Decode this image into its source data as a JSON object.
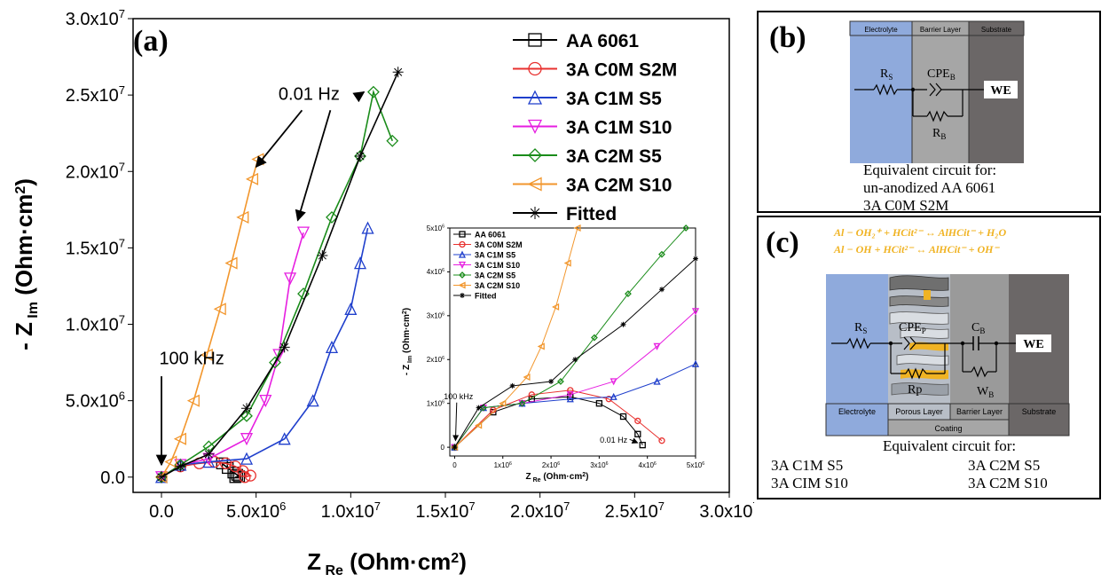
{
  "chart_data": [
    {
      "id": "a",
      "type": "line",
      "panel_label": "(a)",
      "xlabel_main": "Z",
      "xlabel_sub": "Re",
      "xlabel_unit": "(Ohm·cm",
      "xlabel_unit_sup": "2",
      "xlabel_unit_end": ")",
      "ylabel_main": "- Z",
      "ylabel_sub": "Im",
      "ylabel_unit": "(Ohm·cm",
      "ylabel_unit_sup": "2",
      "ylabel_unit_end": ")",
      "xlim": [
        -1500000,
        30000000
      ],
      "ylim": [
        -1000000,
        30000000
      ],
      "xticks": [
        0,
        5000000,
        10000000,
        15000000,
        20000000,
        25000000,
        30000000
      ],
      "xtick_labels": [
        "0.0",
        "5.0x10",
        "1.0x10",
        "1.5x10",
        "2.0x10",
        "2.5x10",
        "3.0x10"
      ],
      "xtick_exps": [
        "",
        "6",
        "7",
        "7",
        "7",
        "7",
        "7"
      ],
      "yticks": [
        0,
        5000000,
        10000000,
        15000000,
        20000000,
        25000000,
        30000000
      ],
      "ytick_labels": [
        "0.0",
        "5.0x10",
        "1.0x10",
        "1.5x10",
        "2.0x10",
        "2.5x10",
        "3.0x10"
      ],
      "ytick_exps": [
        "",
        "6",
        "7",
        "7",
        "7",
        "7",
        "7"
      ],
      "annotations": [
        {
          "text": "0.01 Hz",
          "x": 7800000,
          "y": 24700000
        },
        {
          "text": "100 kHz",
          "x": 1600000,
          "y": 7400000
        }
      ],
      "series": [
        {
          "name": "AA 6061",
          "color": "#000000",
          "marker": "square",
          "x": [
            3200000,
            3500000,
            3800000,
            4000000,
            4100000,
            3900000
          ],
          "y": [
            900000,
            600000,
            300000,
            150000,
            50000,
            0
          ]
        },
        {
          "name": "3A C0M S2M",
          "color": "#e8312f",
          "marker": "circle",
          "x": [
            1000000,
            2000000,
            2800000,
            3400000,
            3900000,
            4300000,
            4700000,
            4400000
          ],
          "y": [
            700000,
            900000,
            1000000,
            900000,
            700000,
            400000,
            100000,
            0
          ]
        },
        {
          "name": "3A C1M S5",
          "color": "#1f3fcc",
          "marker": "triangle-up",
          "x": [
            0,
            1000000,
            2500000,
            4500000,
            6500000,
            8000000,
            9000000,
            10000000,
            10500000,
            10900000
          ],
          "y": [
            0,
            800000,
            1000000,
            1200000,
            2500000,
            5000000,
            8500000,
            11000000,
            14000000,
            16300000
          ]
        },
        {
          "name": "3A C1M S10",
          "color": "#e61ee0",
          "marker": "triangle-down",
          "x": [
            0,
            1000000,
            2500000,
            4500000,
            5500000,
            6200000,
            6800000,
            7500000
          ],
          "y": [
            0,
            800000,
            1200000,
            2500000,
            5000000,
            8000000,
            13000000,
            16000000
          ]
        },
        {
          "name": "3A C2M S5",
          "color": "#1a8c1a",
          "marker": "diamond",
          "x": [
            0,
            1000000,
            2500000,
            4500000,
            6000000,
            7500000,
            9000000,
            10500000,
            11200000,
            12200000
          ],
          "y": [
            0,
            800000,
            2000000,
            4000000,
            7500000,
            12000000,
            17000000,
            21000000,
            25200000,
            22000000
          ]
        },
        {
          "name": "3A C2M S10",
          "color": "#f2962c",
          "marker": "triangle-left",
          "x": [
            0,
            500000,
            1000000,
            1700000,
            2400000,
            3100000,
            3700000,
            4300000,
            4800000,
            5100000
          ],
          "y": [
            0,
            1000000,
            2500000,
            5000000,
            8000000,
            11000000,
            14000000,
            17000000,
            19500000,
            20800000
          ]
        },
        {
          "name": "Fitted",
          "color": "#000000",
          "marker": "star",
          "x": [
            0,
            1000000,
            2500000,
            4500000,
            6500000,
            8500000,
            10500000,
            12500000
          ],
          "y": [
            0,
            700000,
            1500000,
            4500000,
            8500000,
            14500000,
            21000000,
            26500000
          ]
        }
      ]
    },
    {
      "id": "a-inset",
      "type": "line",
      "xlabel_main": "Z",
      "xlabel_sub": "Re",
      "xlabel_unit": "(Ohm·cm",
      "xlabel_unit_sup": "2",
      "xlabel_unit_end": ")",
      "ylabel_main": "- Z",
      "ylabel_sub": "Im",
      "ylabel_unit": "(Ohm·cm",
      "ylabel_unit_sup": "2",
      "ylabel_unit_end": ")",
      "xlim": [
        -100000,
        5000000
      ],
      "ylim": [
        -200000,
        5000000
      ],
      "xticks": [
        0,
        1000000,
        2000000,
        3000000,
        4000000,
        5000000
      ],
      "xtick_labels": [
        "0",
        "1x10",
        "2x10",
        "3x10",
        "4x10",
        "5x10"
      ],
      "xtick_exps": [
        "",
        "6",
        "6",
        "6",
        "6",
        "6"
      ],
      "yticks": [
        0,
        1000000,
        2000000,
        3000000,
        4000000,
        5000000
      ],
      "ytick_labels": [
        "0",
        "1x10",
        "2x10",
        "3x10",
        "4x10",
        "5x10"
      ],
      "ytick_exps": [
        "",
        "6",
        "6",
        "6",
        "6",
        "6"
      ],
      "annotations": [
        {
          "text": "100 kHz",
          "x": 80000,
          "y": 1100000
        },
        {
          "text": "0.01 Hz",
          "x": 3300000,
          "y": 100000
        }
      ],
      "series": [
        {
          "name": "AA 6061",
          "color": "#000000",
          "marker": "square",
          "x": [
            0,
            800000,
            1600000,
            2400000,
            3000000,
            3500000,
            3800000,
            3900000
          ],
          "y": [
            0,
            800000,
            1100000,
            1150000,
            1000000,
            700000,
            300000,
            50000
          ]
        },
        {
          "name": "3A C0M S2M",
          "color": "#e8312f",
          "marker": "circle",
          "x": [
            0,
            800000,
            1600000,
            2400000,
            3200000,
            3800000,
            4300000
          ],
          "y": [
            0,
            850000,
            1200000,
            1300000,
            1100000,
            600000,
            150000
          ]
        },
        {
          "name": "3A C1M S5",
          "color": "#1f3fcc",
          "marker": "triangle-up",
          "x": [
            0,
            600000,
            1400000,
            2400000,
            3300000,
            4200000,
            5000000
          ],
          "y": [
            0,
            900000,
            1000000,
            1100000,
            1150000,
            1500000,
            1900000
          ]
        },
        {
          "name": "3A C1M S10",
          "color": "#e61ee0",
          "marker": "triangle-down",
          "x": [
            0,
            600000,
            1400000,
            2400000,
            3300000,
            4200000,
            5000000
          ],
          "y": [
            0,
            900000,
            1000000,
            1200000,
            1500000,
            2300000,
            3100000
          ]
        },
        {
          "name": "3A C2M S5",
          "color": "#1a8c1a",
          "marker": "diamond",
          "x": [
            0,
            600000,
            1400000,
            2200000,
            2900000,
            3600000,
            4300000,
            4800000
          ],
          "y": [
            0,
            900000,
            1000000,
            1500000,
            2500000,
            3500000,
            4400000,
            5000000
          ]
        },
        {
          "name": "3A C2M S10",
          "color": "#f2962c",
          "marker": "triangle-left",
          "x": [
            0,
            500000,
            1000000,
            1500000,
            1800000,
            2100000,
            2350000,
            2550000
          ],
          "y": [
            0,
            500000,
            1000000,
            1600000,
            2300000,
            3200000,
            4200000,
            5000000
          ]
        },
        {
          "name": "Fitted",
          "color": "#000000",
          "marker": "star",
          "x": [
            0,
            500000,
            1200000,
            2000000,
            2500000,
            3500000,
            4300000,
            5000000
          ],
          "y": [
            0,
            900000,
            1400000,
            1500000,
            2000000,
            2800000,
            3600000,
            4300000
          ]
        }
      ]
    }
  ],
  "panel_b": {
    "label": "(b)",
    "headers": [
      "Electrolyte",
      "Barrier Layer",
      "Substrate"
    ],
    "rs": "R",
    "rs_sub": "S",
    "cpe": "CPE",
    "cpe_sub": "B",
    "rb": "R",
    "rb_sub": "B",
    "we": "WE",
    "caption": [
      "Equivalent circuit for:",
      "un-anodized AA 6061",
      "3A C0M S2M"
    ]
  },
  "panel_c": {
    "label": "(c)",
    "eq1": "Al − OH₂⁺ + HCit²⁻ ↔ AlHCit⁻ + H₂O",
    "eq2": "Al − OH   + HCit²⁻ ↔ AlHCit⁻ + OH⁻",
    "rs": "R",
    "rs_sub": "S",
    "cpe": "CPE",
    "cpe_sub": "P",
    "rp": "Rp",
    "cb": "C",
    "cb_sub": "B",
    "wb": "W",
    "wb_sub": "B",
    "we": "WE",
    "layers": [
      "Electrolyte",
      "Porous Layer",
      "Barrier Layer",
      "Substrate"
    ],
    "coating": "Coating",
    "caption_title": "Equivalent circuit for:",
    "caption_left": [
      "3A C1M S5",
      "3A CIM S10"
    ],
    "caption_right": [
      "3A C2M S5",
      "3A C2M S10"
    ],
    "colors": {
      "electrolyte": "#8faadc",
      "porous": "#b8bec7",
      "barrier": "#9a9a9a",
      "substrate": "#6b6767",
      "accent": "#f0b323"
    }
  }
}
